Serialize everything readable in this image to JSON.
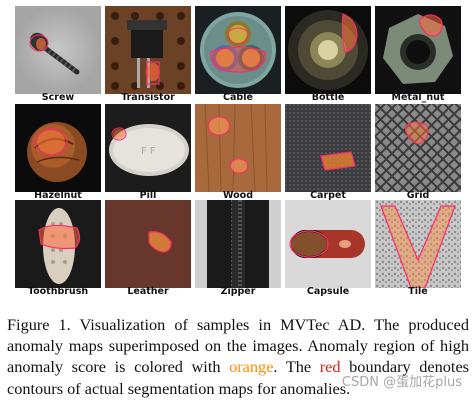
{
  "figure": {
    "tiles": [
      {
        "label": "Screw",
        "icon": "screw-image"
      },
      {
        "label": "Transistor",
        "icon": "transistor-image"
      },
      {
        "label": "Cable",
        "icon": "cable-image"
      },
      {
        "label": "Bottle",
        "icon": "bottle-image"
      },
      {
        "label": "Metal_nut",
        "icon": "metal-nut-image"
      },
      {
        "label": "Hazelnut",
        "icon": "hazelnut-image"
      },
      {
        "label": "Pill",
        "icon": "pill-image"
      },
      {
        "label": "Wood",
        "icon": "wood-image"
      },
      {
        "label": "Carpet",
        "icon": "carpet-image"
      },
      {
        "label": "Grid",
        "icon": "grid-image"
      },
      {
        "label": "Toothbrush",
        "icon": "toothbrush-image"
      },
      {
        "label": "Leather",
        "icon": "leather-image"
      },
      {
        "label": "Zipper",
        "icon": "zipper-image"
      },
      {
        "label": "Capsule",
        "icon": "capsule-image"
      },
      {
        "label": "Tile",
        "icon": "tile-image"
      }
    ],
    "caption": {
      "part1": "Figure 1.  Visualization of samples in MVTec AD. The produced anomaly maps superimposed on the images.  Anomaly region of high anomaly score is colored with ",
      "orange_word": "orange",
      "part2": ".  The ",
      "red_word": "red",
      "part3": " boundary denotes contours of actual segmentation maps for anomalies."
    },
    "watermark": "CSDN @蛋加花plus",
    "colors": {
      "orange": "#ff8c00",
      "red": "#e0201a",
      "contour": "#ff2a6d"
    }
  }
}
